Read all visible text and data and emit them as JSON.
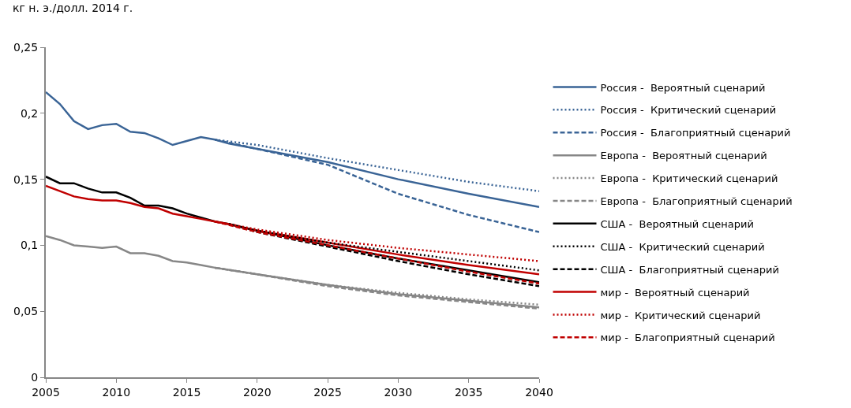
{
  "chart_data": {
    "type": "line",
    "ylabel": "кг н. э./долл. 2014 г.",
    "xlim": [
      2005,
      2040
    ],
    "xticks": [
      2005,
      2010,
      2015,
      2020,
      2025,
      2030,
      2035,
      2040
    ],
    "ylim": [
      0,
      0.25
    ],
    "yticks": [
      {
        "value": 0,
        "label": "0"
      },
      {
        "value": 0.05,
        "label": "0,05"
      },
      {
        "value": 0.1,
        "label": "0,1"
      },
      {
        "value": 0.15,
        "label": "0,15"
      },
      {
        "value": 0.2,
        "label": "0,2"
      },
      {
        "value": 0.25,
        "label": "0,25"
      }
    ],
    "legend": "right",
    "marker": "none",
    "series": [
      {
        "name": "Россия -  Вероятный сценарий",
        "color": "#3a6496",
        "line_style": "solid",
        "x": [
          2005,
          2006,
          2007,
          2008,
          2009,
          2010,
          2011,
          2012,
          2013,
          2014,
          2015,
          2016,
          2017,
          2018,
          2020,
          2025,
          2030,
          2035,
          2040
        ],
        "values": [
          0.216,
          0.207,
          0.194,
          0.188,
          0.191,
          0.192,
          0.186,
          0.185,
          0.181,
          0.176,
          0.179,
          0.182,
          0.18,
          0.177,
          0.173,
          0.163,
          0.15,
          0.139,
          0.129
        ]
      },
      {
        "name": "Россия -  Критический сценарий",
        "color": "#3a6496",
        "line_style": "dotted",
        "x": [
          2017,
          2020,
          2025,
          2030,
          2035,
          2040
        ],
        "values": [
          0.18,
          0.176,
          0.166,
          0.157,
          0.148,
          0.141
        ]
      },
      {
        "name": "Россия -  Благоприятный сценарий",
        "color": "#3a6496",
        "line_style": "dashed",
        "x": [
          2017,
          2020,
          2025,
          2030,
          2035,
          2040
        ],
        "values": [
          0.18,
          0.173,
          0.161,
          0.139,
          0.123,
          0.11
        ]
      },
      {
        "name": "Европа -  Вероятный сценарий",
        "color": "#878787",
        "line_style": "solid",
        "x": [
          2005,
          2006,
          2007,
          2008,
          2009,
          2010,
          2011,
          2012,
          2013,
          2014,
          2015,
          2016,
          2017,
          2020,
          2025,
          2030,
          2035,
          2040
        ],
        "values": [
          0.107,
          0.104,
          0.1,
          0.099,
          0.098,
          0.099,
          0.094,
          0.094,
          0.092,
          0.088,
          0.087,
          0.085,
          0.083,
          0.078,
          0.07,
          0.063,
          0.058,
          0.053
        ]
      },
      {
        "name": "Европа -  Критический сценарий",
        "color": "#878787",
        "line_style": "dotted",
        "x": [
          2017,
          2020,
          2025,
          2030,
          2035,
          2040
        ],
        "values": [
          0.083,
          0.078,
          0.07,
          0.064,
          0.059,
          0.055
        ]
      },
      {
        "name": "Европа -  Благоприятный сценарий",
        "color": "#878787",
        "line_style": "dashed",
        "x": [
          2017,
          2020,
          2025,
          2030,
          2035,
          2040
        ],
        "values": [
          0.083,
          0.078,
          0.069,
          0.062,
          0.057,
          0.052
        ]
      },
      {
        "name": "США -  Вероятный сценарий",
        "color": "#000000",
        "line_style": "solid",
        "x": [
          2005,
          2006,
          2007,
          2008,
          2009,
          2010,
          2011,
          2012,
          2013,
          2014,
          2015,
          2016,
          2017,
          2018,
          2020,
          2025,
          2030,
          2035,
          2040
        ],
        "values": [
          0.152,
          0.147,
          0.147,
          0.143,
          0.14,
          0.14,
          0.136,
          0.13,
          0.13,
          0.128,
          0.124,
          0.121,
          0.118,
          0.116,
          0.111,
          0.1,
          0.09,
          0.081,
          0.072
        ]
      },
      {
        "name": "США -  Критический сценарий",
        "color": "#000000",
        "line_style": "dotted",
        "x": [
          2018,
          2020,
          2025,
          2030,
          2035,
          2040
        ],
        "values": [
          0.116,
          0.111,
          0.102,
          0.095,
          0.088,
          0.081
        ]
      },
      {
        "name": "США -  Благоприятный сценарий",
        "color": "#000000",
        "line_style": "dashed",
        "x": [
          2018,
          2020,
          2025,
          2030,
          2035,
          2040
        ],
        "values": [
          0.116,
          0.11,
          0.099,
          0.088,
          0.078,
          0.069
        ]
      },
      {
        "name": "мир -  Вероятный сценарий",
        "color": "#c00000",
        "line_style": "solid",
        "x": [
          2005,
          2006,
          2007,
          2008,
          2009,
          2010,
          2011,
          2012,
          2013,
          2014,
          2015,
          2016,
          2017,
          2018,
          2020,
          2025,
          2030,
          2035,
          2040
        ],
        "values": [
          0.145,
          0.141,
          0.137,
          0.135,
          0.134,
          0.134,
          0.132,
          0.129,
          0.128,
          0.124,
          0.122,
          0.12,
          0.118,
          0.116,
          0.111,
          0.102,
          0.093,
          0.085,
          0.078
        ]
      },
      {
        "name": "мир -  Критический сценарий",
        "color": "#c00000",
        "line_style": "dotted",
        "x": [
          2017,
          2020,
          2025,
          2030,
          2035,
          2040
        ],
        "values": [
          0.118,
          0.112,
          0.104,
          0.098,
          0.093,
          0.088
        ]
      },
      {
        "name": "мир -  Благоприятный сценарий",
        "color": "#c00000",
        "line_style": "dashed",
        "x": [
          2017,
          2020,
          2025,
          2030,
          2035,
          2040
        ],
        "values": [
          0.118,
          0.11,
          0.1,
          0.09,
          0.08,
          0.071
        ]
      }
    ]
  }
}
